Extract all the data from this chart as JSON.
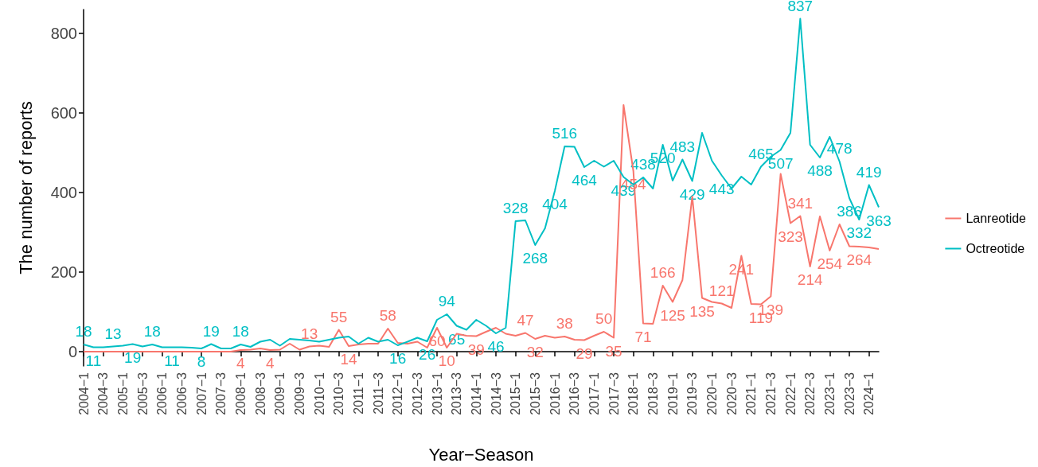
{
  "chart_data": {
    "type": "line",
    "xlabel": "Year−Season",
    "ylabel": "The number of reports",
    "categories": [
      "2004−1",
      null,
      "2004−3",
      null,
      "2005−1",
      null,
      "2005−3",
      null,
      "2006−1",
      null,
      "2006−3",
      null,
      "2007−1",
      null,
      "2007−3",
      null,
      "2008−1",
      null,
      "2008−3",
      null,
      "2009−1",
      null,
      "2009−3",
      null,
      "2010−1",
      null,
      "2010−3",
      null,
      "2011−1",
      null,
      "2011−3",
      null,
      "2012−1",
      null,
      "2012−3",
      null,
      "2013−1",
      null,
      "2013−3",
      null,
      "2014−1",
      null,
      "2014−3",
      null,
      "2015−1",
      null,
      "2015−3",
      null,
      "2016−1",
      null,
      "2016−3",
      null,
      "2017−1",
      null,
      "2017−3",
      null,
      "2018−1",
      null,
      "2018−3",
      null,
      "2019−1",
      null,
      "2019−3",
      null,
      "2020−1",
      null,
      "2020−3",
      null,
      "2021−1",
      null,
      "2021−3",
      null,
      "2022−1",
      null,
      "2022−3",
      null,
      "2023−1",
      null,
      "2023−3",
      null,
      "2024−1",
      null
    ],
    "series": [
      {
        "name": "Lanreotide",
        "color": "#f8766d",
        "values": [
          0,
          0,
          0,
          0,
          0,
          0,
          0,
          0,
          0,
          0,
          0,
          0,
          0,
          0,
          0,
          0,
          4,
          5,
          8,
          4,
          5,
          20,
          5,
          13,
          15,
          12,
          55,
          14,
          18,
          20,
          20,
          58,
          22,
          20,
          25,
          10,
          60,
          10,
          45,
          40,
          39,
          50,
          60,
          45,
          40,
          47,
          32,
          40,
          35,
          38,
          30,
          29,
          40,
          50,
          35,
          620,
          454,
          71,
          70,
          166,
          125,
          180,
          390,
          135,
          125,
          121,
          110,
          241,
          120,
          119,
          139,
          447,
          323,
          341,
          214,
          340,
          254,
          320,
          265,
          264,
          262,
          258
        ],
        "value_labels": [
          null,
          null,
          null,
          null,
          null,
          null,
          null,
          null,
          null,
          null,
          null,
          null,
          null,
          null,
          null,
          null,
          "4",
          null,
          null,
          "4",
          null,
          null,
          null,
          "13",
          null,
          null,
          "55",
          "14",
          null,
          null,
          null,
          "58",
          null,
          null,
          null,
          null,
          "60",
          "10",
          null,
          null,
          "39",
          null,
          null,
          null,
          null,
          "47",
          "32",
          null,
          null,
          "38",
          null,
          "29",
          null,
          "50",
          "35",
          null,
          "454",
          "71",
          null,
          "166",
          "125",
          null,
          null,
          "135",
          null,
          "121",
          null,
          "241",
          null,
          "119",
          "139",
          null,
          "323",
          "341",
          "214",
          null,
          "254",
          null,
          null,
          "264",
          null,
          null
        ]
      },
      {
        "name": "Octreotide",
        "color": "#00bfc4",
        "values": [
          18,
          11,
          11,
          13,
          15,
          19,
          13,
          18,
          11,
          11,
          11,
          10,
          8,
          19,
          8,
          8,
          18,
          12,
          25,
          30,
          15,
          32,
          30,
          28,
          25,
          30,
          35,
          38,
          20,
          35,
          25,
          30,
          16,
          25,
          35,
          26,
          80,
          94,
          65,
          55,
          80,
          65,
          46,
          60,
          328,
          330,
          268,
          310,
          404,
          516,
          515,
          464,
          480,
          465,
          480,
          439,
          420,
          438,
          410,
          520,
          430,
          483,
          429,
          550,
          480,
          443,
          410,
          440,
          420,
          465,
          490,
          507,
          550,
          837,
          520,
          488,
          540,
          478,
          386,
          332,
          419,
          363
        ],
        "value_labels": [
          "18",
          "11",
          null,
          "13",
          null,
          "19",
          null,
          "18",
          null,
          "11",
          null,
          null,
          "8",
          "19",
          null,
          null,
          "18",
          null,
          null,
          null,
          null,
          null,
          null,
          null,
          null,
          null,
          null,
          null,
          null,
          null,
          null,
          null,
          "16",
          null,
          null,
          "26",
          null,
          "94",
          "65",
          null,
          null,
          null,
          "46",
          null,
          "328",
          null,
          "268",
          null,
          "404",
          "516",
          null,
          "464",
          null,
          null,
          null,
          "439",
          null,
          "438",
          null,
          "520",
          null,
          "483",
          "429",
          null,
          null,
          "443",
          null,
          null,
          null,
          "465",
          null,
          "507",
          null,
          "837",
          null,
          "488",
          null,
          "478",
          "386",
          "332",
          "419",
          "363"
        ]
      }
    ],
    "ylim": [
      -36,
      860
    ],
    "yticks": [
      0,
      200,
      400,
      600,
      800
    ],
    "grid": false,
    "legend": "right",
    "marker": "none",
    "line_style": "solid"
  }
}
